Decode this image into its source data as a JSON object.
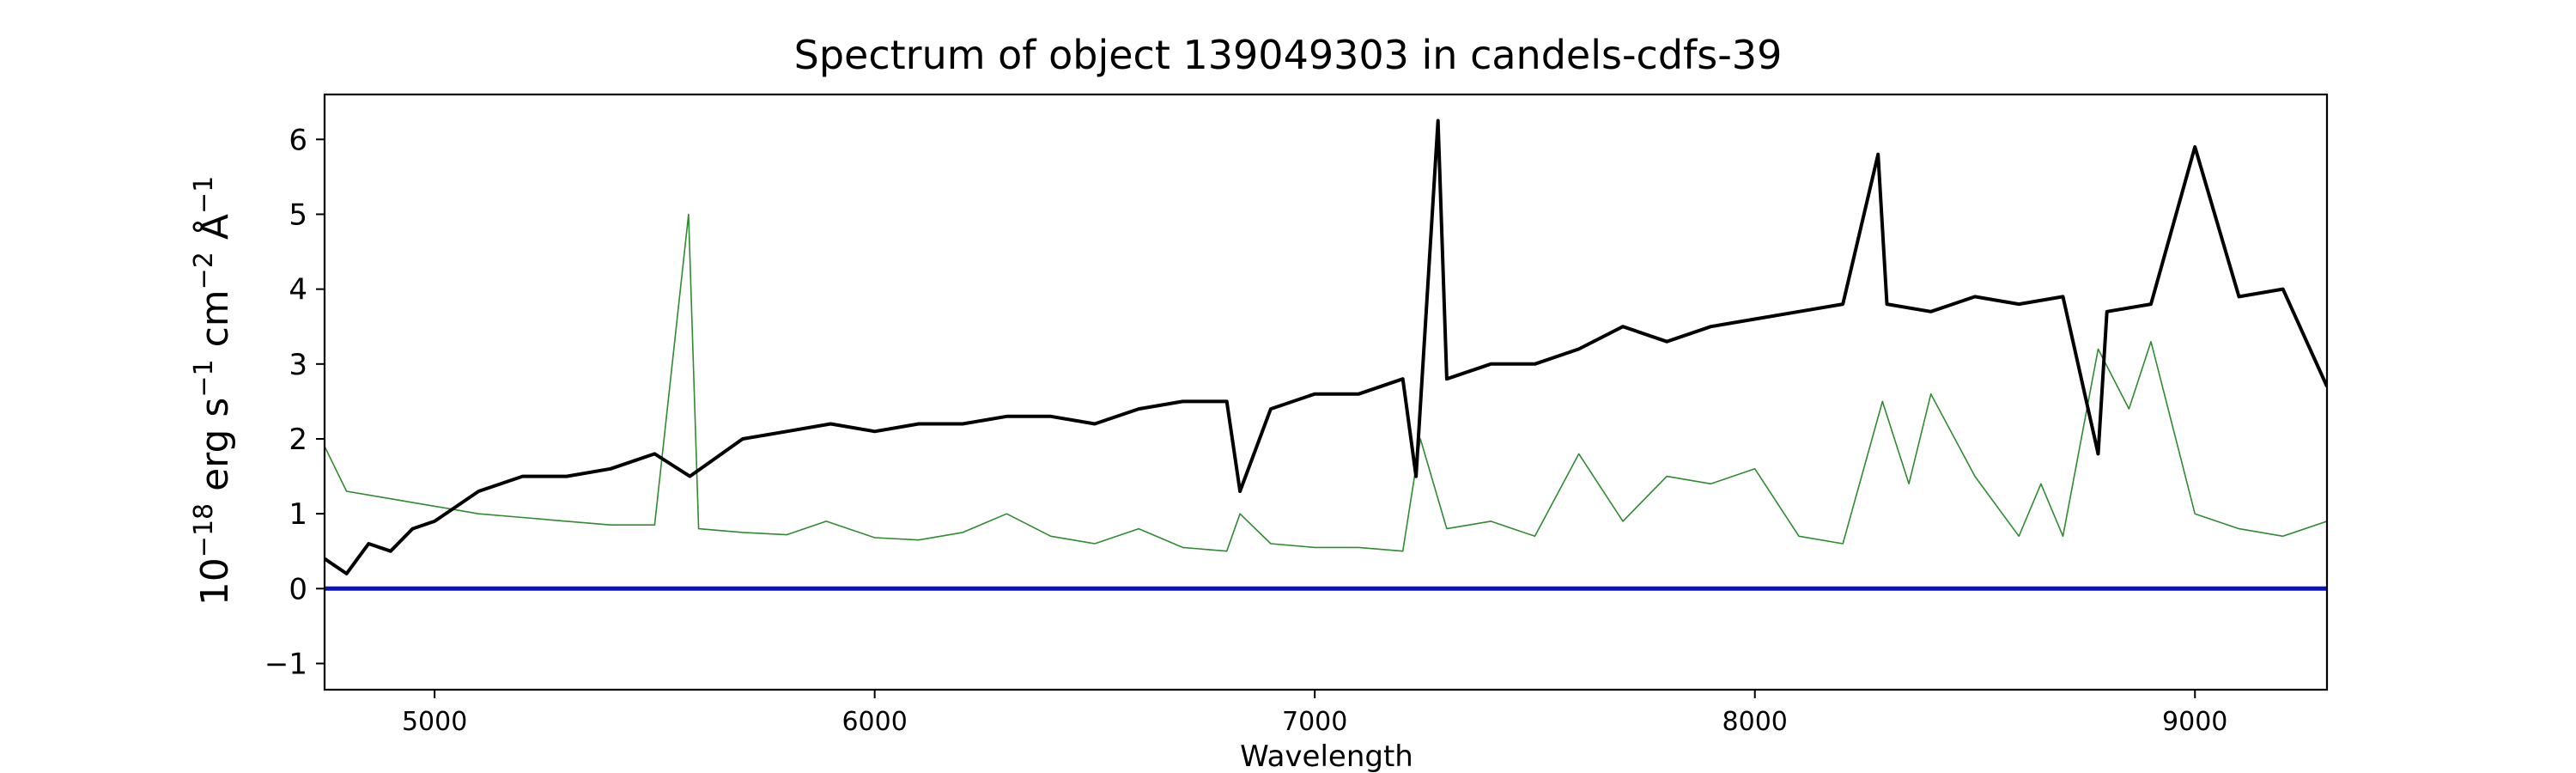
{
  "chart_data": {
    "type": "line",
    "title": "Spectrum of object 139049303 in candels-cdfs-39",
    "xlabel": "Wavelength",
    "ylabel": "10$^{-18}$ erg s$^{-1}$cm$^{-2}$Å$^{-1}$",
    "ylabel_parts": {
      "base": "10",
      "exp1": "−18",
      "mid1": " erg s",
      "exp2": "−1",
      "mid2": " cm",
      "exp3": "−2",
      "mid3": " Å",
      "exp4": "−1"
    },
    "xlim": [
      4750,
      9300
    ],
    "ylim": [
      -1.35,
      6.6
    ],
    "xticks": [
      5000,
      6000,
      7000,
      8000,
      9000
    ],
    "xtick_labels": [
      "5000",
      "6000",
      "7000",
      "8000",
      "9000"
    ],
    "yticks": [
      -1,
      0,
      1,
      2,
      3,
      4,
      5,
      6
    ],
    "ytick_labels": [
      "−1",
      "0",
      "1",
      "2",
      "3",
      "4",
      "5",
      "6"
    ],
    "grid": false,
    "series": [
      {
        "role": "flux",
        "color": "#000000",
        "x": [
          4750,
          4800,
          4850,
          4900,
          4950,
          5000,
          5100,
          5200,
          5300,
          5400,
          5500,
          5580,
          5700,
          5800,
          5900,
          6000,
          6100,
          6200,
          6300,
          6400,
          6500,
          6600,
          6700,
          6800,
          6830,
          6900,
          7000,
          7100,
          7200,
          7230,
          7280,
          7300,
          7400,
          7500,
          7600,
          7700,
          7800,
          7900,
          8000,
          8100,
          8200,
          8280,
          8300,
          8400,
          8500,
          8600,
          8700,
          8780,
          8800,
          8900,
          9000,
          9100,
          9200,
          9300
        ],
        "y": [
          0.4,
          0.2,
          0.6,
          0.5,
          0.8,
          0.9,
          1.3,
          1.5,
          1.5,
          1.6,
          1.8,
          1.5,
          2.0,
          2.1,
          2.2,
          2.1,
          2.2,
          2.2,
          2.3,
          2.3,
          2.2,
          2.4,
          2.5,
          2.5,
          1.3,
          2.4,
          2.6,
          2.6,
          2.8,
          1.5,
          6.25,
          2.8,
          3.0,
          3.0,
          3.2,
          3.5,
          3.3,
          3.5,
          3.6,
          3.7,
          3.8,
          5.8,
          3.8,
          3.7,
          3.9,
          3.8,
          3.9,
          1.8,
          3.7,
          3.8,
          5.9,
          3.9,
          4.0,
          2.7
        ]
      },
      {
        "role": "sky",
        "color": "#2f8b2f",
        "x": [
          4750,
          4800,
          4900,
          5000,
          5100,
          5200,
          5300,
          5400,
          5500,
          5577,
          5600,
          5700,
          5800,
          5890,
          6000,
          6100,
          6200,
          6300,
          6400,
          6500,
          6600,
          6700,
          6800,
          6830,
          6900,
          7000,
          7100,
          7200,
          7240,
          7300,
          7400,
          7500,
          7600,
          7700,
          7800,
          7900,
          8000,
          8100,
          8200,
          8290,
          8350,
          8400,
          8500,
          8600,
          8650,
          8700,
          8780,
          8850,
          8900,
          9000,
          9100,
          9200,
          9300
        ],
        "y": [
          1.9,
          1.3,
          1.2,
          1.1,
          1.0,
          0.95,
          0.9,
          0.85,
          0.85,
          5.0,
          0.8,
          0.75,
          0.72,
          0.9,
          0.68,
          0.65,
          0.75,
          1.0,
          0.7,
          0.6,
          0.8,
          0.55,
          0.5,
          1.0,
          0.6,
          0.55,
          0.55,
          0.5,
          2.0,
          0.8,
          0.9,
          0.7,
          1.8,
          0.9,
          1.5,
          1.4,
          1.6,
          0.7,
          0.6,
          2.5,
          1.4,
          2.6,
          1.5,
          0.7,
          1.4,
          0.7,
          3.2,
          2.4,
          3.3,
          1.0,
          0.8,
          0.7,
          0.9
        ]
      },
      {
        "role": "zero",
        "color": "#0a12c8",
        "x": [
          4750,
          9300
        ],
        "y": [
          0.0,
          0.0
        ]
      }
    ]
  }
}
